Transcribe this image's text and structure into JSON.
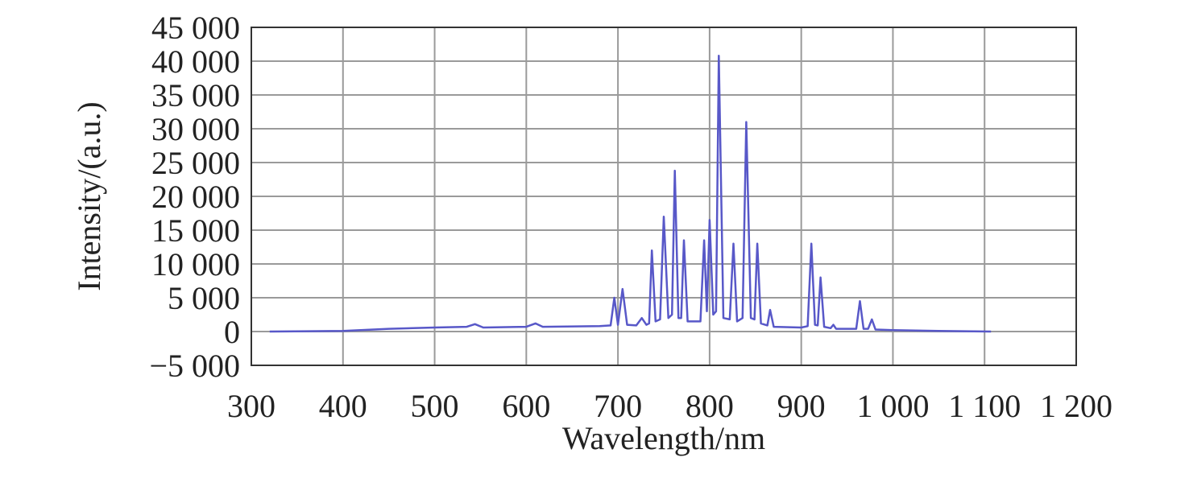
{
  "chart_data": {
    "type": "line",
    "xlabel": "Wavelength/nm",
    "ylabel": "Intensity/(a.u.)",
    "x": [
      320,
      400,
      450,
      500,
      535,
      544,
      553,
      600,
      610,
      618,
      680,
      692,
      696,
      700,
      705,
      710,
      720,
      726,
      731,
      734,
      737,
      741,
      746,
      750,
      755,
      759,
      762,
      766,
      769,
      772,
      776,
      790,
      794,
      797,
      800,
      804,
      807,
      810,
      815,
      822,
      826,
      830,
      836,
      840,
      845,
      849,
      852,
      856,
      863,
      866,
      870,
      900,
      907,
      911,
      915,
      918,
      921,
      925,
      932,
      935,
      938,
      960,
      964,
      968,
      973,
      977,
      981,
      1000,
      1050,
      1107
    ],
    "series": [
      {
        "color": "#5858c8",
        "values": [
          0,
          100,
          400,
          600,
          700,
          1100,
          600,
          700,
          1200,
          700,
          800,
          900,
          5000,
          1000,
          6300,
          1000,
          900,
          2000,
          1000,
          1200,
          12000,
          1500,
          1800,
          17000,
          2000,
          2500,
          23800,
          2000,
          2000,
          13500,
          1500,
          1500,
          13500,
          3000,
          16500,
          2500,
          3000,
          40800,
          2000,
          1800,
          13000,
          1500,
          2000,
          31000,
          2000,
          1800,
          13000,
          1200,
          900,
          3200,
          700,
          600,
          800,
          13000,
          1000,
          900,
          8000,
          700,
          500,
          1000,
          400,
          400,
          4500,
          400,
          400,
          1800,
          300,
          200,
          100,
          0
        ]
      }
    ],
    "xlim": [
      300,
      1200
    ],
    "xticks": [
      300,
      400,
      500,
      600,
      700,
      800,
      900,
      {
        "value": 1000,
        "label": "1 000"
      },
      {
        "value": 1100,
        "label": "1 100"
      },
      {
        "value": 1200,
        "label": "1 200"
      }
    ],
    "ylim": [
      -5000,
      45000
    ],
    "yticks": [
      {
        "value": -5000,
        "label": "−5 000"
      },
      0,
      {
        "value": 5000,
        "label": "5 000"
      },
      {
        "value": 10000,
        "label": "10 000"
      },
      {
        "value": 15000,
        "label": "15 000"
      },
      {
        "value": 20000,
        "label": "20 000"
      },
      {
        "value": 25000,
        "label": "25 000"
      },
      {
        "value": 30000,
        "label": "30 000"
      },
      {
        "value": 35000,
        "label": "35 000"
      },
      {
        "value": 40000,
        "label": "40 000"
      },
      {
        "value": 45000,
        "label": "45 000"
      }
    ],
    "grid": true
  }
}
